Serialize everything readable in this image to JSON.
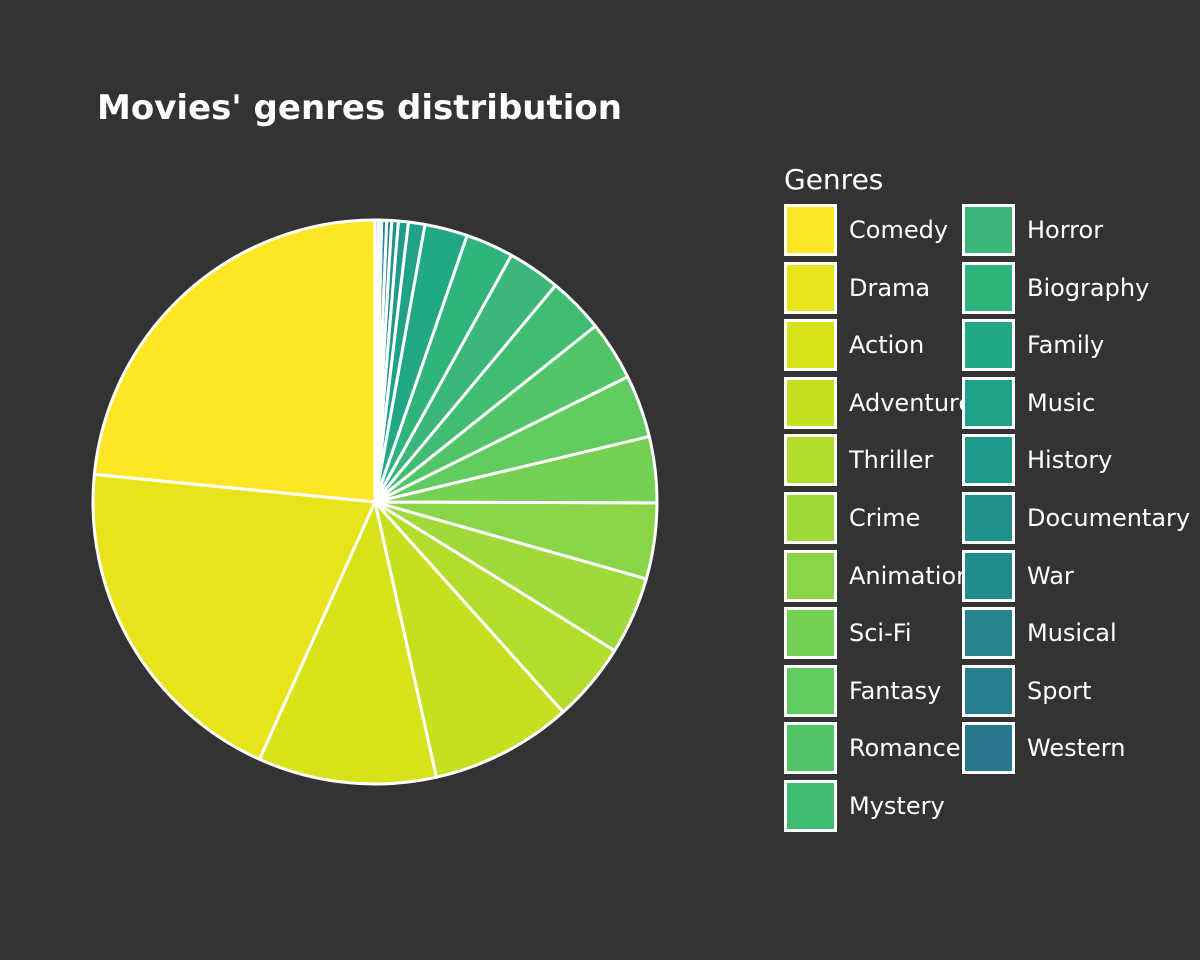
{
  "chart_data": {
    "type": "pie",
    "title": "Movies' genres distribution",
    "legend": {
      "title": "Genres",
      "placement": "right",
      "columns": 2
    },
    "start_angle": "top (12 o'clock), counter-clockwise",
    "slices": [
      {
        "label": "Comedy",
        "value": 24.8,
        "color": "#fde725"
      },
      {
        "label": "Drama",
        "value": 21.0,
        "color": "#e8e419"
      },
      {
        "label": "Action",
        "value": 10.8,
        "color": "#d8e219"
      },
      {
        "label": "Adventure",
        "value": 8.6,
        "color": "#c6e021"
      },
      {
        "label": "Thriller",
        "value": 4.8,
        "color": "#b2dd2d"
      },
      {
        "label": "Crime",
        "value": 4.7,
        "color": "#9fda3a"
      },
      {
        "label": "Animation",
        "value": 4.6,
        "color": "#8ad547"
      },
      {
        "label": "Sci-Fi",
        "value": 4.0,
        "color": "#75d054"
      },
      {
        "label": "Fantasy",
        "value": 3.8,
        "color": "#62cb5f"
      },
      {
        "label": "Romance",
        "value": 3.6,
        "color": "#52c569"
      },
      {
        "label": "Mystery",
        "value": 3.4,
        "color": "#40bd72"
      },
      {
        "label": "Horror",
        "value": 3.2,
        "color": "#3bb77a"
      },
      {
        "label": "Biography",
        "value": 2.9,
        "color": "#2fb47c"
      },
      {
        "label": "Family",
        "value": 2.6,
        "color": "#22a884"
      },
      {
        "label": "Music",
        "value": 1.0,
        "color": "#1fa287"
      },
      {
        "label": "History",
        "value": 0.6,
        "color": "#1e9b8a"
      },
      {
        "label": "Documentary",
        "value": 0.4,
        "color": "#21918c"
      },
      {
        "label": "War",
        "value": 0.3,
        "color": "#228c8d"
      },
      {
        "label": "Musical",
        "value": 0.3,
        "color": "#25848e"
      },
      {
        "label": "Sport",
        "value": 0.2,
        "color": "#277f8e"
      },
      {
        "label": "Western",
        "value": 0.2,
        "color": "#2a788e"
      }
    ]
  }
}
